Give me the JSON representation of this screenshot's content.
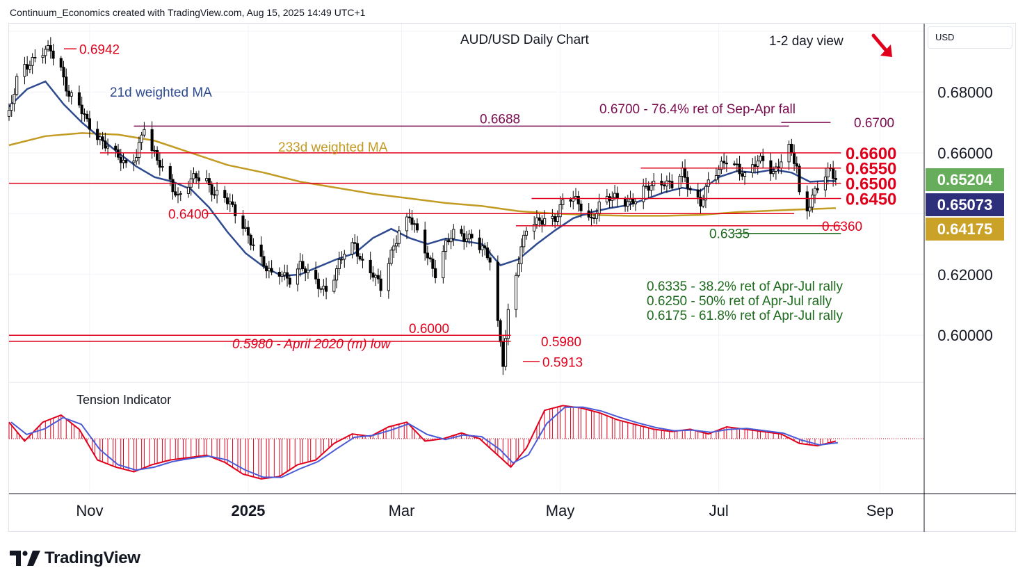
{
  "header": {
    "credit": "Continuum_Economics created with TradingView.com, Aug 15, 2025 14:49 UTC+1",
    "currency": "USD"
  },
  "branding": {
    "logo_text": "TradingView"
  },
  "colors": {
    "candle": "#000000",
    "ma21": "#2e4a8f",
    "ma233": "#c29b22",
    "level_red": "#e0001b",
    "green_text": "#1e6b1e",
    "maroon_text": "#7a0b4f",
    "tag_green": "#66ae5b",
    "tag_navy": "#2e2f7a",
    "tag_gold": "#c9a227"
  },
  "chart_data": [
    {
      "type": "candlestick",
      "title": "AUD/USD Daily Chart",
      "subtitle": "1-2 day view",
      "view_arrow": "down-right-arrow",
      "x_ticks": [
        "Nov",
        "2025",
        "Mar",
        "May",
        "Jul",
        "Sep"
      ],
      "x_range": [
        "2024-10-01",
        "2025-09-18"
      ],
      "y_ticks": [
        "0.68000",
        "0.66000",
        "0.62000",
        "0.60000"
      ],
      "ylim": [
        0.5845,
        0.7025
      ],
      "last_close": 0.6507,
      "price_tags": [
        {
          "value": "0.65204",
          "color": "#66ae5b"
        },
        {
          "value": "0.65073",
          "color": "#2e2f7a"
        },
        {
          "value": "0.64175",
          "color": "#c9a227"
        }
      ],
      "grid": true,
      "series": [
        {
          "name": "21d weighted MA",
          "color": "#2e4a8f",
          "points": [
            [
              "2024-10-01",
              0.6752
            ],
            [
              "2024-10-08",
              0.681
            ],
            [
              "2024-10-15",
              0.6835
            ],
            [
              "2024-10-22",
              0.676
            ],
            [
              "2024-10-29",
              0.67
            ],
            [
              "2024-11-05",
              0.665
            ],
            [
              "2024-11-12",
              0.66
            ],
            [
              "2024-11-19",
              0.6555
            ],
            [
              "2024-11-26",
              0.652
            ],
            [
              "2024-12-03",
              0.6505
            ],
            [
              "2024-12-10",
              0.648
            ],
            [
              "2024-12-17",
              0.642
            ],
            [
              "2024-12-24",
              0.634
            ],
            [
              "2024-12-31",
              0.627
            ],
            [
              "2025-01-07",
              0.6225
            ],
            [
              "2025-01-14",
              0.6195
            ],
            [
              "2025-01-21",
              0.62
            ],
            [
              "2025-01-28",
              0.6225
            ],
            [
              "2025-02-04",
              0.625
            ],
            [
              "2025-02-11",
              0.627
            ],
            [
              "2025-02-18",
              0.632
            ],
            [
              "2025-02-25",
              0.635
            ],
            [
              "2025-03-04",
              0.632
            ],
            [
              "2025-03-11",
              0.63
            ],
            [
              "2025-03-18",
              0.6318
            ],
            [
              "2025-03-25",
              0.631
            ],
            [
              "2025-04-01",
              0.63
            ],
            [
              "2025-04-08",
              0.623
            ],
            [
              "2025-04-15",
              0.625
            ],
            [
              "2025-04-22",
              0.63
            ],
            [
              "2025-04-29",
              0.6345
            ],
            [
              "2025-05-06",
              0.6385
            ],
            [
              "2025-05-13",
              0.6405
            ],
            [
              "2025-05-20",
              0.6418
            ],
            [
              "2025-05-27",
              0.6428
            ],
            [
              "2025-06-03",
              0.6448
            ],
            [
              "2025-06-10",
              0.647
            ],
            [
              "2025-06-17",
              0.6485
            ],
            [
              "2025-06-24",
              0.6475
            ],
            [
              "2025-07-01",
              0.652
            ],
            [
              "2025-07-08",
              0.654
            ],
            [
              "2025-07-15",
              0.6535
            ],
            [
              "2025-07-22",
              0.6545
            ],
            [
              "2025-07-29",
              0.6535
            ],
            [
              "2025-08-05",
              0.6505
            ],
            [
              "2025-08-12",
              0.6508
            ],
            [
              "2025-08-15",
              0.6507
            ]
          ]
        },
        {
          "name": "233d weighted MA",
          "color": "#c29b22",
          "points": [
            [
              "2024-10-01",
              0.6625
            ],
            [
              "2024-10-15",
              0.6655
            ],
            [
              "2024-10-29",
              0.6665
            ],
            [
              "2024-11-12",
              0.666
            ],
            [
              "2024-11-26",
              0.664
            ],
            [
              "2024-12-10",
              0.66
            ],
            [
              "2024-12-24",
              0.656
            ],
            [
              "2025-01-07",
              0.6535
            ],
            [
              "2025-01-21",
              0.6505
            ],
            [
              "2025-02-04",
              0.6485
            ],
            [
              "2025-02-18",
              0.6465
            ],
            [
              "2025-03-04",
              0.645
            ],
            [
              "2025-03-18",
              0.6435
            ],
            [
              "2025-04-01",
              0.6425
            ],
            [
              "2025-04-15",
              0.6408
            ],
            [
              "2025-04-29",
              0.64
            ],
            [
              "2025-05-13",
              0.6396
            ],
            [
              "2025-05-27",
              0.6393
            ],
            [
              "2025-06-10",
              0.6393
            ],
            [
              "2025-06-24",
              0.6396
            ],
            [
              "2025-07-08",
              0.6405
            ],
            [
              "2025-07-22",
              0.641
            ],
            [
              "2025-08-05",
              0.6415
            ],
            [
              "2025-08-15",
              0.6418
            ]
          ]
        },
        {
          "name": "price",
          "color": "#000000",
          "points": [
            [
              "2024-10-01",
              0.672
            ],
            [
              "2024-10-04",
              0.685
            ],
            [
              "2024-10-07",
              0.689
            ],
            [
              "2024-10-10",
              0.69
            ],
            [
              "2024-10-14",
              0.6925
            ],
            [
              "2024-10-17",
              0.6942
            ],
            [
              "2024-10-21",
              0.688
            ],
            [
              "2024-10-24",
              0.679
            ],
            [
              "2024-10-28",
              0.675
            ],
            [
              "2024-10-31",
              0.67
            ],
            [
              "2024-11-04",
              0.666
            ],
            [
              "2024-11-08",
              0.662
            ],
            [
              "2024-11-12",
              0.658
            ],
            [
              "2024-11-15",
              0.656
            ],
            [
              "2024-11-19",
              0.66
            ],
            [
              "2024-11-22",
              0.6688
            ],
            [
              "2024-11-25",
              0.66
            ],
            [
              "2024-11-28",
              0.656
            ],
            [
              "2024-12-02",
              0.651
            ],
            [
              "2024-12-05",
              0.6455
            ],
            [
              "2024-12-09",
              0.6495
            ],
            [
              "2024-12-12",
              0.652
            ],
            [
              "2024-12-16",
              0.651
            ],
            [
              "2024-12-19",
              0.647
            ],
            [
              "2024-12-23",
              0.645
            ],
            [
              "2024-12-27",
              0.64
            ],
            [
              "2024-12-31",
              0.635
            ],
            [
              "2025-01-03",
              0.63
            ],
            [
              "2025-01-07",
              0.6225
            ],
            [
              "2025-01-10",
              0.6195
            ],
            [
              "2025-01-14",
              0.621
            ],
            [
              "2025-01-17",
              0.6185
            ],
            [
              "2025-01-21",
              0.6225
            ],
            [
              "2025-01-24",
              0.62
            ],
            [
              "2025-01-28",
              0.617
            ],
            [
              "2025-01-31",
              0.615
            ],
            [
              "2025-02-04",
              0.621
            ],
            [
              "2025-02-07",
              0.627
            ],
            [
              "2025-02-11",
              0.63
            ],
            [
              "2025-02-14",
              0.624
            ],
            [
              "2025-02-18",
              0.62
            ],
            [
              "2025-02-21",
              0.615
            ],
            [
              "2025-02-25",
              0.627
            ],
            [
              "2025-02-28",
              0.635
            ],
            [
              "2025-03-04",
              0.639
            ],
            [
              "2025-03-07",
              0.633
            ],
            [
              "2025-03-11",
              0.626
            ],
            [
              "2025-03-14",
              0.621
            ],
            [
              "2025-03-18",
              0.63
            ],
            [
              "2025-03-21",
              0.633
            ],
            [
              "2025-03-25",
              0.632
            ],
            [
              "2025-03-28",
              0.633
            ],
            [
              "2025-04-01",
              0.629
            ],
            [
              "2025-04-04",
              0.624
            ],
            [
              "2025-04-07",
              0.603
            ],
            [
              "2025-04-09",
              0.5913
            ],
            [
              "2025-04-11",
              0.608
            ],
            [
              "2025-04-15",
              0.625
            ],
            [
              "2025-04-18",
              0.6345
            ],
            [
              "2025-04-22",
              0.637
            ],
            [
              "2025-04-25",
              0.639
            ],
            [
              "2025-04-29",
              0.6385
            ],
            [
              "2025-05-02",
              0.643
            ],
            [
              "2025-05-06",
              0.645
            ],
            [
              "2025-05-09",
              0.643
            ],
            [
              "2025-05-13",
              0.638
            ],
            [
              "2025-05-16",
              0.642
            ],
            [
              "2025-05-20",
              0.645
            ],
            [
              "2025-05-23",
              0.646
            ],
            [
              "2025-05-27",
              0.644
            ],
            [
              "2025-05-30",
              0.644
            ],
            [
              "2025-06-03",
              0.648
            ],
            [
              "2025-06-06",
              0.65
            ],
            [
              "2025-06-10",
              0.651
            ],
            [
              "2025-06-13",
              0.649
            ],
            [
              "2025-06-17",
              0.653
            ],
            [
              "2025-06-20",
              0.648
            ],
            [
              "2025-06-24",
              0.644
            ],
            [
              "2025-06-27",
              0.65
            ],
            [
              "2025-07-01",
              0.654
            ],
            [
              "2025-07-04",
              0.658
            ],
            [
              "2025-07-08",
              0.656
            ],
            [
              "2025-07-11",
              0.652
            ],
            [
              "2025-07-15",
              0.656
            ],
            [
              "2025-07-18",
              0.658
            ],
            [
              "2025-07-22",
              0.654
            ],
            [
              "2025-07-25",
              0.6575
            ],
            [
              "2025-07-28",
              0.661
            ],
            [
              "2025-07-31",
              0.655
            ],
            [
              "2025-08-01",
              0.646
            ],
            [
              "2025-08-04",
              0.642
            ],
            [
              "2025-08-07",
              0.648
            ],
            [
              "2025-08-11",
              0.652
            ],
            [
              "2025-08-13",
              0.654
            ],
            [
              "2025-08-15",
              0.6507
            ]
          ]
        }
      ],
      "levels": [
        {
          "value": 0.67,
          "label": "0.6700",
          "color": "#7a0b4f",
          "from": "2025-07-25",
          "to": "2025-08-13"
        },
        {
          "value": 0.6688,
          "label": "0.6688",
          "color": "#7a0b4f",
          "from": "2024-11-18",
          "to": "2025-07-28"
        },
        {
          "value": 0.66,
          "label": "0.6600",
          "color": "#e0001b",
          "from": "2024-11-05",
          "to": "2025-08-17"
        },
        {
          "value": 0.655,
          "label": "0.6550",
          "color": "#e0001b",
          "from": "2025-06-01",
          "to": "2025-08-17"
        },
        {
          "value": 0.65,
          "label": "0.6500",
          "color": "#e0001b",
          "from": "2024-10-01",
          "to": "2025-08-17"
        },
        {
          "value": 0.645,
          "label": "0.6450",
          "color": "#e0001b",
          "from": "2025-04-20",
          "to": "2025-08-17"
        },
        {
          "value": 0.64,
          "label": "0.6400",
          "color": "#e0001b",
          "from": "2024-12-15",
          "to": "2025-07-30"
        },
        {
          "value": 0.636,
          "label": "0.6360",
          "color": "#e0001b",
          "from": "2025-04-14",
          "to": "2025-08-17"
        },
        {
          "value": 0.6335,
          "label": "0.6335",
          "color": "#1e6b1e",
          "from": "2025-07-07",
          "to": "2025-08-17"
        },
        {
          "value": 0.6,
          "label": "0.6000",
          "color": "#e0001b",
          "from": "2024-10-01",
          "to": "2025-04-12"
        },
        {
          "value": 0.598,
          "label": "0.5980",
          "color": "#e0001b",
          "from": "2024-10-01",
          "to": "2025-04-12"
        }
      ],
      "annotations": {
        "high": "0.6942",
        "low": "0.5913",
        "ma21_label": "21d weighted MA",
        "ma233_label": "233d weighted MA",
        "fib_note": "0.6700 - 76.4% ret of Sep-Apr fall",
        "april_low_note": "0.5980 - April 2020 (m) low",
        "retracements": [
          "0.6335 - 38.2% ret of Apr-Jul rally",
          "0.6250 - 50% ret of Apr-Jul rally",
          "0.6175 - 61.8% ret of Apr-Jul rally"
        ]
      }
    },
    {
      "type": "bar",
      "title": "Tension Indicator",
      "zero_line": true,
      "ylim": [
        -1,
        1
      ],
      "x_range": [
        "2024-10-01",
        "2025-09-18"
      ],
      "points": [
        [
          "2024-10-01",
          0.35
        ],
        [
          "2024-10-07",
          -0.05
        ],
        [
          "2024-10-14",
          0.35
        ],
        [
          "2024-10-21",
          0.5
        ],
        [
          "2024-10-28",
          0.2
        ],
        [
          "2024-11-04",
          -0.45
        ],
        [
          "2024-11-11",
          -0.6
        ],
        [
          "2024-11-18",
          -0.7
        ],
        [
          "2024-11-25",
          -0.55
        ],
        [
          "2024-12-02",
          -0.45
        ],
        [
          "2024-12-09",
          -0.4
        ],
        [
          "2024-12-16",
          -0.35
        ],
        [
          "2024-12-23",
          -0.5
        ],
        [
          "2024-12-30",
          -0.75
        ],
        [
          "2025-01-06",
          -0.85
        ],
        [
          "2025-01-13",
          -0.8
        ],
        [
          "2025-01-20",
          -0.55
        ],
        [
          "2025-01-27",
          -0.45
        ],
        [
          "2025-02-03",
          -0.1
        ],
        [
          "2025-02-10",
          0.1
        ],
        [
          "2025-02-17",
          0.05
        ],
        [
          "2025-02-24",
          0.25
        ],
        [
          "2025-03-03",
          0.35
        ],
        [
          "2025-03-10",
          -0.05
        ],
        [
          "2025-03-17",
          0.0
        ],
        [
          "2025-03-24",
          0.12
        ],
        [
          "2025-03-31",
          0.0
        ],
        [
          "2025-04-07",
          -0.35
        ],
        [
          "2025-04-12",
          -0.6
        ],
        [
          "2025-04-18",
          -0.2
        ],
        [
          "2025-04-25",
          0.6
        ],
        [
          "2025-05-02",
          0.7
        ],
        [
          "2025-05-09",
          0.65
        ],
        [
          "2025-05-16",
          0.55
        ],
        [
          "2025-05-23",
          0.4
        ],
        [
          "2025-05-30",
          0.3
        ],
        [
          "2025-06-06",
          0.2
        ],
        [
          "2025-06-13",
          0.15
        ],
        [
          "2025-06-20",
          0.2
        ],
        [
          "2025-06-27",
          0.1
        ],
        [
          "2025-07-04",
          0.25
        ],
        [
          "2025-07-11",
          0.2
        ],
        [
          "2025-07-18",
          0.15
        ],
        [
          "2025-07-25",
          0.1
        ],
        [
          "2025-08-01",
          -0.1
        ],
        [
          "2025-08-08",
          -0.15
        ],
        [
          "2025-08-15",
          -0.05
        ]
      ]
    }
  ]
}
